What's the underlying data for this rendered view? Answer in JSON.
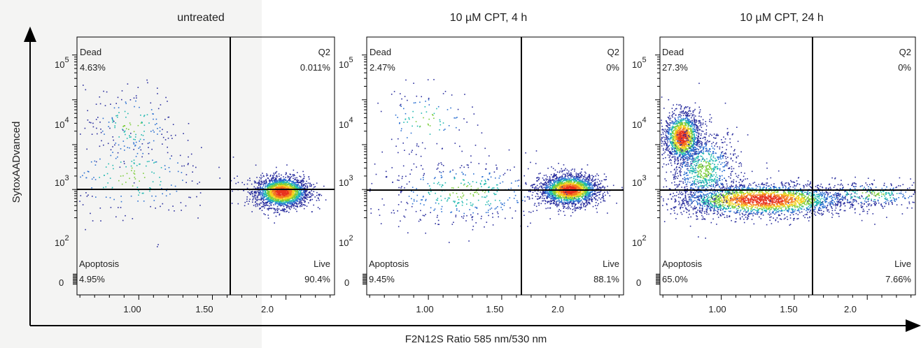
{
  "figure": {
    "xlabel": "F2N12S Ratio 585 nm/530 nm",
    "ylabel": "SytoxAADvanced"
  },
  "chart_data": [
    {
      "type": "scatter",
      "title": "untreated",
      "x_ticks": [
        "1.00",
        "1.50",
        "2.0"
      ],
      "y_ticks": [
        "0",
        "10",
        "10",
        "10",
        "10"
      ],
      "y_tick_exponents": [
        "",
        "2",
        "3",
        "4",
        "5"
      ],
      "quadrants": {
        "dead": {
          "label": "Dead",
          "percent": "4.63%"
        },
        "q2": {
          "label": "Q2",
          "percent": "0.011%"
        },
        "apoptosis": {
          "label": "Apoptosis",
          "percent": "4.95%"
        },
        "live": {
          "label": "Live",
          "percent": "90.4%"
        }
      },
      "gate": {
        "x": 1.72,
        "y_decade": 2.8
      },
      "xlim": [
        0.58,
        2.33
      ],
      "ylim_decades": [
        -0.35,
        5.4
      ],
      "populations": [
        {
          "name": "live",
          "x": 1.97,
          "y": 1.95,
          "sx": 0.09,
          "sy": 0.17,
          "n": 2300,
          "rotate": 0
        },
        {
          "name": "dead",
          "x": 0.95,
          "y": 3.45,
          "sx": 0.16,
          "sy": 0.42,
          "n": 170,
          "rotate": 0
        },
        {
          "name": "apoptosis",
          "x": 0.95,
          "y": 2.3,
          "sx": 0.28,
          "sy": 0.5,
          "n": 230,
          "rotate": 0
        }
      ]
    },
    {
      "type": "scatter",
      "title": "10 µM CPT, 4 h",
      "x_ticks": [
        "1.00",
        "1.50",
        "2.0"
      ],
      "y_ticks": [
        "0",
        "10",
        "10",
        "10",
        "10"
      ],
      "y_tick_exponents": [
        "",
        "2",
        "3",
        "4",
        "5"
      ],
      "quadrants": {
        "dead": {
          "label": "Dead",
          "percent": "2.47%"
        },
        "q2": {
          "label": "Q2",
          "percent": "0%"
        },
        "apoptosis": {
          "label": "Apoptosis",
          "percent": "9.45%"
        },
        "live": {
          "label": "Live",
          "percent": "88.1%"
        }
      },
      "gate": {
        "x": 1.72,
        "y_decade": 2.8
      },
      "xlim": [
        0.58,
        2.33
      ],
      "ylim_decades": [
        -0.35,
        5.4
      ],
      "populations": [
        {
          "name": "live",
          "x": 1.96,
          "y": 2.0,
          "sx": 0.1,
          "sy": 0.17,
          "n": 2200,
          "rotate": 0
        },
        {
          "name": "dead",
          "x": 0.98,
          "y": 3.55,
          "sx": 0.18,
          "sy": 0.38,
          "n": 110,
          "rotate": 0
        },
        {
          "name": "apoptosis",
          "x": 1.25,
          "y": 1.95,
          "sx": 0.33,
          "sy": 0.38,
          "n": 450,
          "rotate": 0
        }
      ]
    },
    {
      "type": "scatter",
      "title": "10 µM CPT, 24 h",
      "x_ticks": [
        "1.00",
        "1.50",
        "2.0"
      ],
      "y_ticks": [
        "0",
        "10",
        "10",
        "10",
        "10"
      ],
      "y_tick_exponents": [
        "",
        "2",
        "3",
        "4",
        "5"
      ],
      "quadrants": {
        "dead": {
          "label": "Dead",
          "percent": "27.3%"
        },
        "q2": {
          "label": "Q2",
          "percent": "0%"
        },
        "apoptosis": {
          "label": "Apoptosis",
          "percent": "65.0%"
        },
        "live": {
          "label": "Live",
          "percent": "7.66%"
        }
      },
      "gate": {
        "x": 1.72,
        "y_decade": 2.8
      },
      "xlim": [
        0.58,
        2.33
      ],
      "ylim_decades": [
        -0.35,
        5.4
      ],
      "populations": [
        {
          "name": "dead",
          "x": 0.73,
          "y": 3.18,
          "sx": 0.06,
          "sy": 0.28,
          "n": 1400,
          "rotate": 0
        },
        {
          "name": "apoptosis-main",
          "x": 1.28,
          "y": 1.78,
          "sx": 0.3,
          "sy": 0.18,
          "n": 2600,
          "rotate": 0
        },
        {
          "name": "apoptosis-trail",
          "x": 0.88,
          "y": 2.45,
          "sx": 0.12,
          "sy": 0.45,
          "n": 900,
          "rotate": 0
        },
        {
          "name": "live",
          "x": 2.02,
          "y": 1.9,
          "sx": 0.22,
          "sy": 0.15,
          "n": 330,
          "rotate": 0
        }
      ]
    }
  ]
}
